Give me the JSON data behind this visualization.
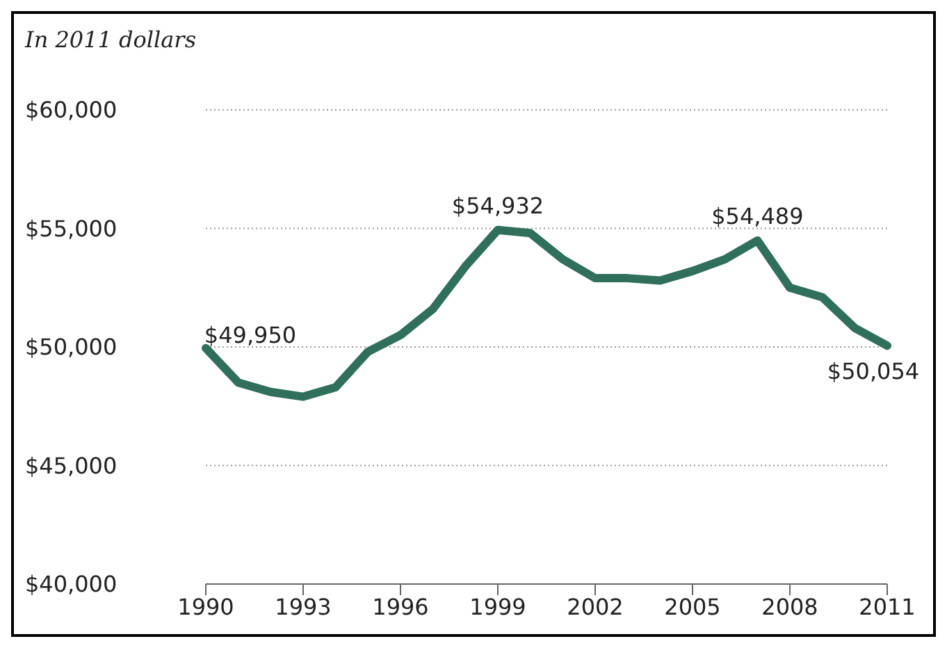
{
  "chart_data": {
    "type": "line",
    "ylabel": "In 2011 dollars",
    "x": [
      1990,
      1991,
      1992,
      1993,
      1994,
      1995,
      1996,
      1997,
      1998,
      1999,
      2000,
      2001,
      2002,
      2003,
      2004,
      2005,
      2006,
      2007,
      2008,
      2009,
      2010,
      2011
    ],
    "series": [
      {
        "color": "#2f6f5c",
        "values": [
          49950,
          48500,
          48100,
          47900,
          48300,
          49800,
          50500,
          51600,
          53400,
          54932,
          54800,
          53700,
          52900,
          52900,
          52800,
          53200,
          53700,
          54489,
          52500,
          52100,
          50800,
          50054
        ]
      }
    ],
    "xlim": [
      1990,
      2011
    ],
    "xticks": [
      1990,
      1993,
      1996,
      1999,
      2002,
      2005,
      2008,
      2011
    ],
    "ylim": [
      40000,
      60000
    ],
    "yticks": [
      {
        "value": 40000,
        "label": "$40,000"
      },
      {
        "value": 45000,
        "label": "$45,000"
      },
      {
        "value": 50000,
        "label": "$50,000"
      },
      {
        "value": 55000,
        "label": "$55,000"
      },
      {
        "value": 60000,
        "label": "$60,000"
      }
    ],
    "grid": "y",
    "marker": "none",
    "line_style": "solid",
    "annotations": [
      {
        "text": "$49,950",
        "x": 1990,
        "y": 49950
      },
      {
        "text": "$54,932",
        "x": 1999,
        "y": 54932
      },
      {
        "text": "$54,489",
        "x": 2007,
        "y": 54489
      },
      {
        "text": "$50,054",
        "x": 2011,
        "y": 50054
      }
    ]
  }
}
